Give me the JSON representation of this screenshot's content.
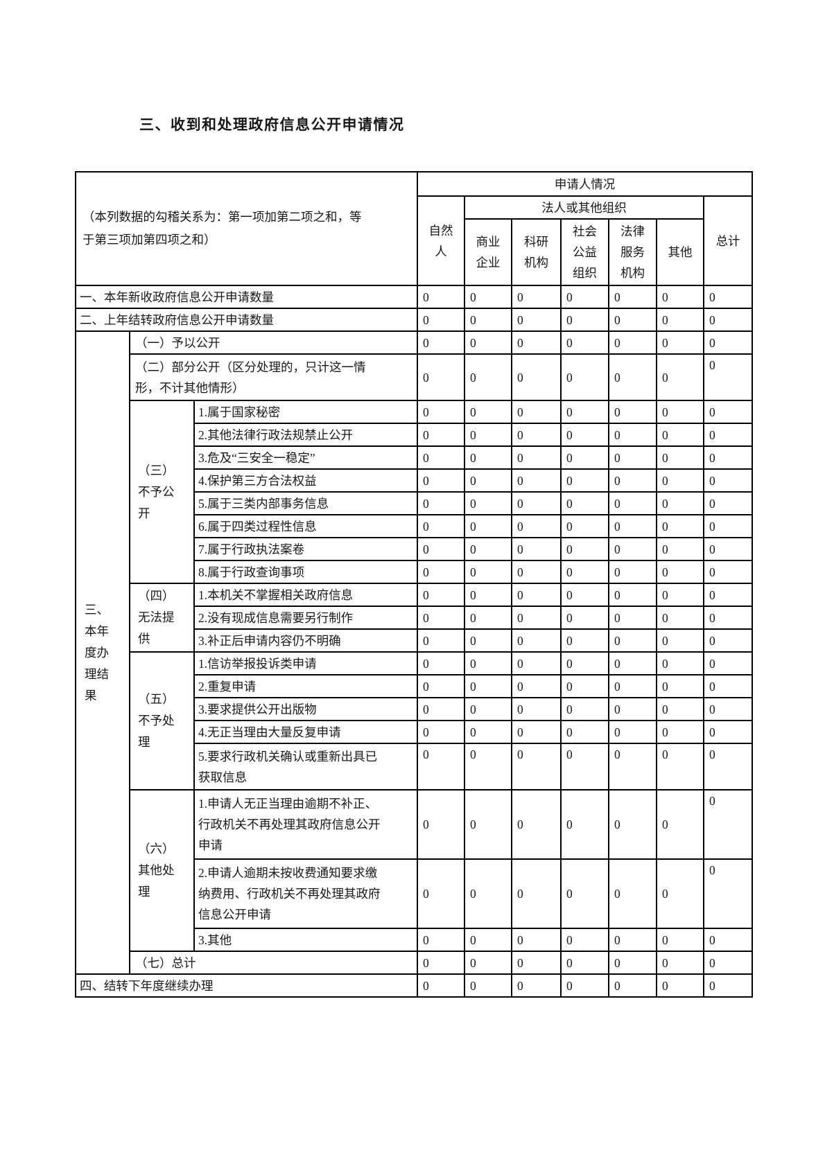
{
  "page": {
    "title": "三、收到和处理政府信息公开申请情况"
  },
  "table": {
    "note": "（本列数据的勾稽关系为：第一项加第二项之和，等\n于第三项加第四项之和）",
    "header": {
      "applicant_group": "申请人情况",
      "legal_org_group": "法人或其他组织",
      "natural_person": "自然\n人",
      "commercial": "商业\n企业",
      "research": "科研\n机构",
      "social_welfare": "社会\n公益\n组织",
      "legal_service": "法律\n服务\n机构",
      "other": "其他",
      "total": "总计"
    },
    "rows": [
      {
        "id": "new_requests",
        "type": "top",
        "label": "一、本年新收政府信息公开申请数量",
        "values": [
          "0",
          "0",
          "0",
          "0",
          "0",
          "0",
          "0"
        ]
      },
      {
        "id": "carryover_prev",
        "type": "top",
        "label": "二、上年结转政府信息公开申请数量",
        "values": [
          "0",
          "0",
          "0",
          "0",
          "0",
          "0",
          "0"
        ]
      },
      {
        "id": "granted",
        "type": "sub",
        "section": {
          "label": "三、本年度办理结果",
          "span": 22
        },
        "label": "（一）予以公开",
        "values": [
          "0",
          "0",
          "0",
          "0",
          "0",
          "0",
          "0"
        ]
      },
      {
        "id": "partial_open",
        "type": "sub",
        "label": "（二）部分公开（区分处理的，只计这一情\n形，不计其他情形）",
        "values": [
          "0",
          "0",
          "0",
          "0",
          "0",
          "0",
          "0"
        ]
      },
      {
        "id": "secret_state",
        "type": "item",
        "group": {
          "label": "（三）不予公开",
          "span": 8
        },
        "label": "1.属于国家秘密",
        "values": [
          "0",
          "0",
          "0",
          "0",
          "0",
          "0",
          "0"
        ]
      },
      {
        "id": "secret_law",
        "type": "item",
        "label": "2.其他法律行政法规禁止公开",
        "values": [
          "0",
          "0",
          "0",
          "0",
          "0",
          "0",
          "0"
        ]
      },
      {
        "id": "danger_safety",
        "type": "item",
        "label": "3.危及“三安全一稳定”",
        "values": [
          "0",
          "0",
          "0",
          "0",
          "0",
          "0",
          "0"
        ]
      },
      {
        "id": "third_party",
        "type": "item",
        "label": "4.保护第三方合法权益",
        "values": [
          "0",
          "0",
          "0",
          "0",
          "0",
          "0",
          "0"
        ]
      },
      {
        "id": "internal_affairs",
        "type": "item",
        "label": "5.属于三类内部事务信息",
        "values": [
          "0",
          "0",
          "0",
          "0",
          "0",
          "0",
          "0"
        ]
      },
      {
        "id": "process_info",
        "type": "item",
        "label": "6.属于四类过程性信息",
        "values": [
          "0",
          "0",
          "0",
          "0",
          "0",
          "0",
          "0"
        ]
      },
      {
        "id": "enforcement_files",
        "type": "item",
        "label": "7.属于行政执法案卷",
        "values": [
          "0",
          "0",
          "0",
          "0",
          "0",
          "0",
          "0"
        ]
      },
      {
        "id": "admin_inquiry",
        "type": "item",
        "label": "8.属于行政查询事项",
        "values": [
          "0",
          "0",
          "0",
          "0",
          "0",
          "0",
          "0"
        ]
      },
      {
        "id": "not_held",
        "type": "item",
        "group": {
          "label": "（四）无法提供",
          "span": 3
        },
        "label": "1.本机关不掌握相关政府信息",
        "values": [
          "0",
          "0",
          "0",
          "0",
          "0",
          "0",
          "0"
        ]
      },
      {
        "id": "need_creation",
        "type": "item",
        "label": "2.没有现成信息需要另行制作",
        "values": [
          "0",
          "0",
          "0",
          "0",
          "0",
          "0",
          "0"
        ]
      },
      {
        "id": "unclear_after_amend",
        "type": "item",
        "label": "3.补正后申请内容仍不明确",
        "values": [
          "0",
          "0",
          "0",
          "0",
          "0",
          "0",
          "0"
        ]
      },
      {
        "id": "petition_complaint",
        "type": "item",
        "group": {
          "label": "（五）不予处理",
          "span": 5
        },
        "label": "1.信访举报投诉类申请",
        "values": [
          "0",
          "0",
          "0",
          "0",
          "0",
          "0",
          "0"
        ]
      },
      {
        "id": "repeat_request",
        "type": "item",
        "label": "2.重复申请",
        "values": [
          "0",
          "0",
          "0",
          "0",
          "0",
          "0",
          "0"
        ]
      },
      {
        "id": "publications",
        "type": "item",
        "label": "3.要求提供公开出版物",
        "values": [
          "0",
          "0",
          "0",
          "0",
          "0",
          "0",
          "0"
        ]
      },
      {
        "id": "repeated_no_reason",
        "type": "item",
        "label": "4.无正当理由大量反复申请",
        "values": [
          "0",
          "0",
          "0",
          "0",
          "0",
          "0",
          "0"
        ]
      },
      {
        "id": "confirm_reissue",
        "type": "item",
        "label": "5.要求行政机关确认或重新出具已\n获取信息",
        "values": [
          "0",
          "0",
          "0",
          "0",
          "0",
          "0",
          "0"
        ]
      },
      {
        "id": "overdue_no_amend",
        "type": "item",
        "group": {
          "label": "（六）其他处理",
          "span": 3
        },
        "label": "1.申请人无正当理由逾期不补正、\n行政机关不再处理其政府信息公开\n申请",
        "values": [
          "0",
          "0",
          "0",
          "0",
          "0",
          "0",
          "0"
        ]
      },
      {
        "id": "overdue_no_fee",
        "type": "item",
        "label": "2.申请人逾期未按收费通知要求缴\n纳费用、行政机关不再处理其政府\n信息公开申请",
        "values": [
          "0",
          "0",
          "0",
          "0",
          "0",
          "0",
          "0"
        ]
      },
      {
        "id": "other_other",
        "type": "item",
        "label": "3.其他",
        "values": [
          "0",
          "0",
          "0",
          "0",
          "0",
          "0",
          "0"
        ]
      },
      {
        "id": "subtotal",
        "type": "sub",
        "label": "（七）总计",
        "values": [
          "0",
          "0",
          "0",
          "0",
          "0",
          "0",
          "0"
        ]
      },
      {
        "id": "carryover_next",
        "type": "top",
        "label": "四、结转下年度继续办理",
        "values": [
          "0",
          "0",
          "0",
          "0",
          "0",
          "0",
          "0"
        ]
      }
    ]
  }
}
